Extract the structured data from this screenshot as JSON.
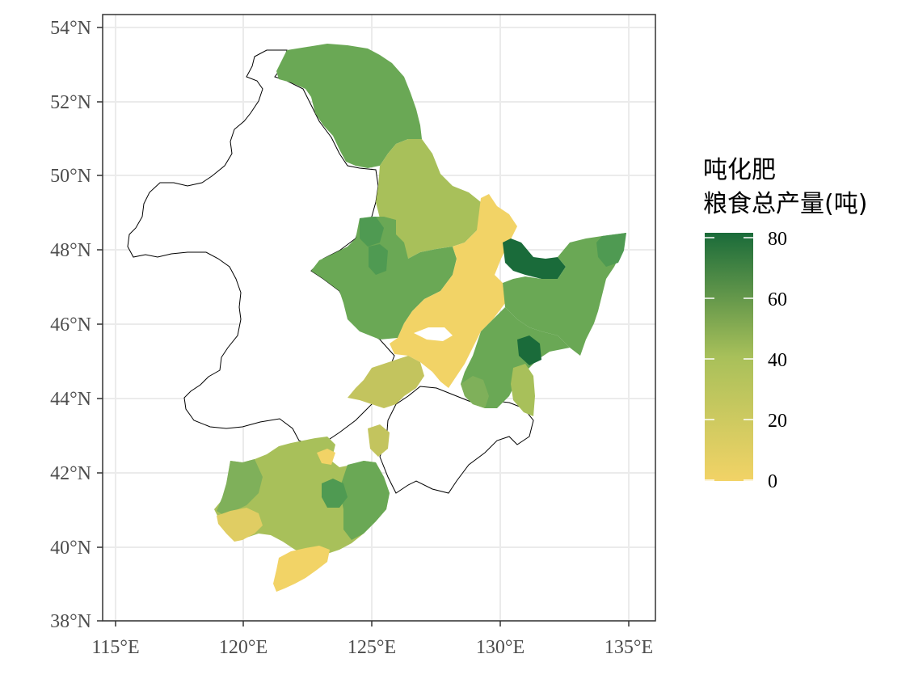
{
  "map": {
    "x_ticks": [
      "115°E",
      "120°E",
      "125°E",
      "130°E",
      "135°E"
    ],
    "y_ticks": [
      "38°N",
      "40°N",
      "42°N",
      "44°N",
      "46°N",
      "48°N",
      "50°N",
      "52°N",
      "54°N"
    ]
  },
  "legend": {
    "title_line1": "吨化肥",
    "title_line2": "粮食总产量(吨)",
    "ticks": [
      "80",
      "60",
      "40",
      "20",
      "0"
    ],
    "range": [
      0,
      80
    ],
    "low_color": "#f2d366",
    "mid_color": "#a8c05a",
    "high_color": "#1a6b3a"
  },
  "colors": {
    "outline": "#000000",
    "grid": "#ebebeb",
    "panel_border": "#333333",
    "sand": "#f2d366",
    "light_olive": "#c3c45e",
    "olive": "#a8c05a",
    "light_green": "#7fb05a",
    "green": "#6aa855",
    "mid_green": "#4f9a52",
    "dark_green": "#2e7d45",
    "deepest_green": "#1a6b3a"
  }
}
